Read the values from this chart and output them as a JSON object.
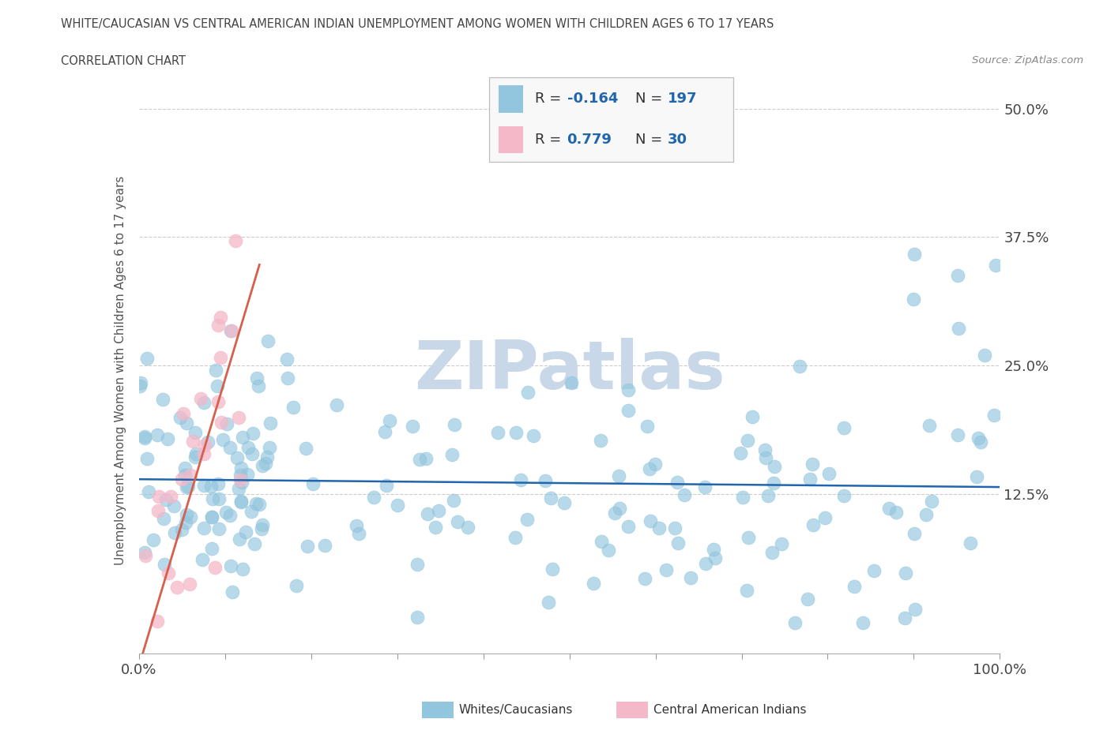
{
  "title": "WHITE/CAUCASIAN VS CENTRAL AMERICAN INDIAN UNEMPLOYMENT AMONG WOMEN WITH CHILDREN AGES 6 TO 17 YEARS",
  "subtitle": "CORRELATION CHART",
  "source": "Source: ZipAtlas.com",
  "ylabel": "Unemployment Among Women with Children Ages 6 to 17 years",
  "xlim": [
    0,
    100
  ],
  "ylim": [
    -3,
    52
  ],
  "yticks": [
    0,
    12.5,
    25,
    37.5,
    50
  ],
  "ytick_labels": [
    "",
    "12.5%",
    "25.0%",
    "37.5%",
    "50.0%"
  ],
  "xtick_vals": [
    0,
    10,
    20,
    30,
    40,
    50,
    60,
    70,
    80,
    90,
    100
  ],
  "xtick_labels_show": [
    "0.0%",
    "",
    "",
    "",
    "",
    "",
    "",
    "",
    "",
    "",
    "100.0%"
  ],
  "blue_color": "#92c5de",
  "pink_color": "#f4b8c8",
  "blue_line_color": "#2166ac",
  "pink_line_color": "#d6604d",
  "legend_text_color": "#2166ac",
  "title_color": "#444444",
  "watermark": "ZIPatlas",
  "watermark_color": "#c8d8e8",
  "background_color": "#ffffff",
  "grid_color": "#cccccc",
  "n_blue": 197,
  "n_pink": 30,
  "blue_R": -0.164,
  "pink_R": 0.779,
  "blue_seed": 1234,
  "pink_seed": 5678
}
